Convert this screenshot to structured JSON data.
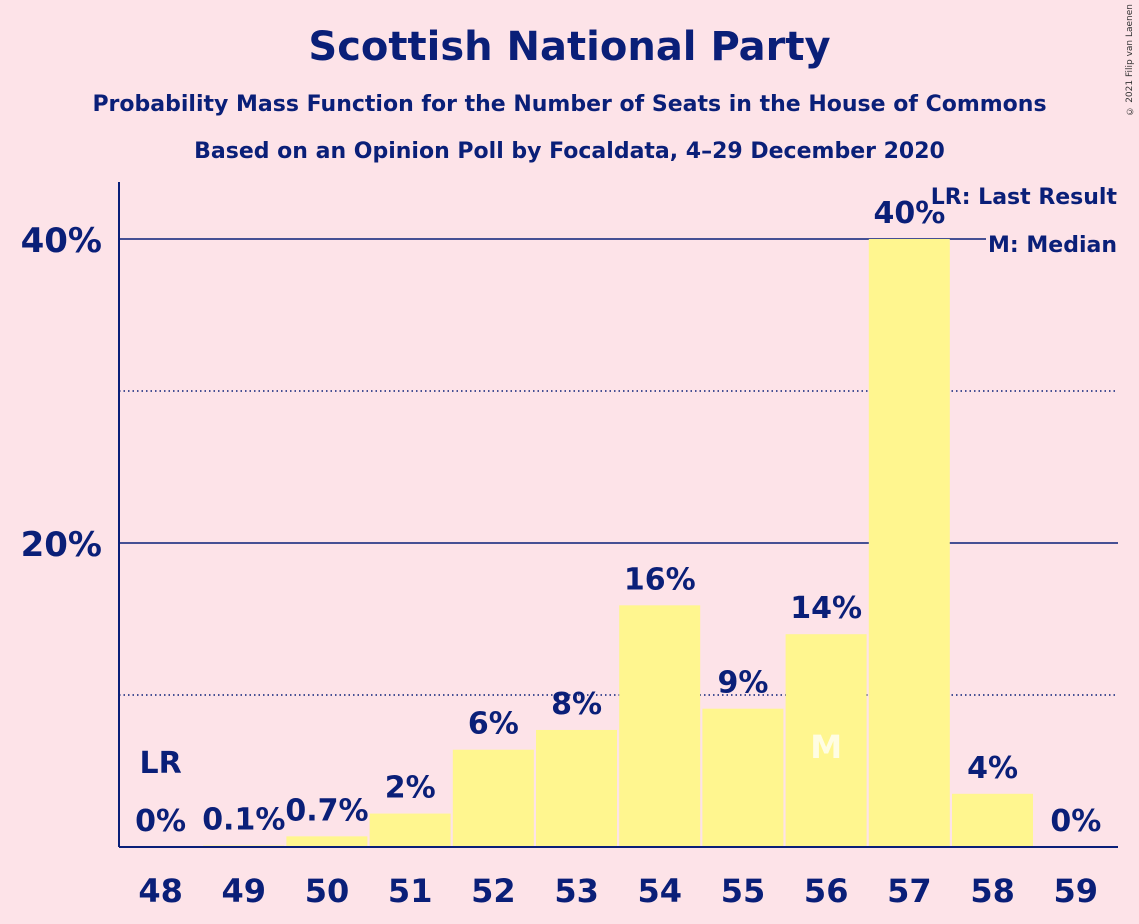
{
  "chart_data": {
    "type": "bar",
    "title": "Scottish National Party",
    "subtitle": "Probability Mass Function for the Number of Seats in the House of Commons",
    "subtitle2": "Based on an Opinion Poll by Focaldata, 4–29 December 2020",
    "categories": [
      "48",
      "49",
      "50",
      "51",
      "52",
      "53",
      "54",
      "55",
      "56",
      "57",
      "58",
      "59"
    ],
    "values": [
      0,
      0.1,
      0.7,
      2.2,
      6.4,
      7.7,
      15.9,
      9.1,
      14.0,
      40.0,
      3.5,
      0
    ],
    "value_labels": [
      "0%",
      "0.1%",
      "0.7%",
      "2%",
      "6%",
      "8%",
      "16%",
      "9%",
      "14%",
      "40%",
      "4%",
      "0%"
    ],
    "ylim": [
      0,
      44
    ],
    "yticks": [
      20,
      40
    ],
    "ytick_labels": [
      "20%",
      "40%"
    ],
    "dotted_gridlines": [
      10,
      30
    ],
    "last_result_category": "48",
    "last_result_marker": "LR",
    "median_category": "56",
    "median_marker": "M",
    "legend": [
      "LR: Last Result",
      "M: Median"
    ],
    "legend_position": "top-right",
    "bar_color": "#fff68f",
    "axis_color": "#0a1f78",
    "background_color": "#fde3e8"
  },
  "copyright": "© 2021 Filip van Laenen"
}
